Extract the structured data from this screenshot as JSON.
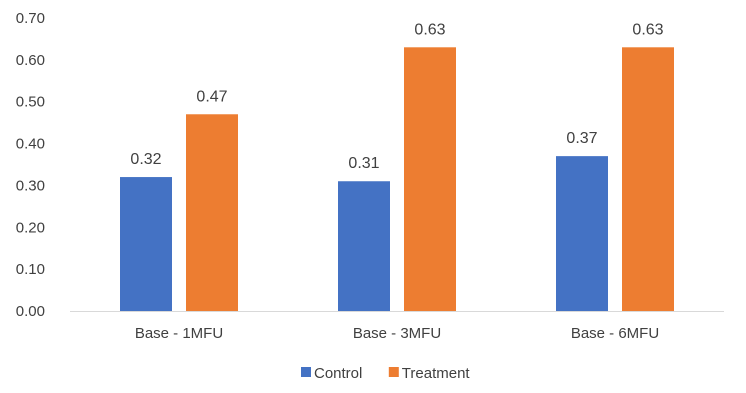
{
  "chart_data": {
    "type": "bar",
    "title": "",
    "xlabel": "",
    "ylabel": "",
    "categories": [
      "Base - 1MFU",
      "Base - 3MFU",
      "Base - 6MFU"
    ],
    "series": [
      {
        "name": "Control",
        "values": [
          0.32,
          0.31,
          0.37
        ],
        "color": "#4472C4",
        "labels": [
          "0.32",
          "0.31",
          "0.37"
        ]
      },
      {
        "name": "Treatment",
        "values": [
          0.47,
          0.63,
          0.63
        ],
        "color": "#ED7D31",
        "labels": [
          "0.47",
          "0.63",
          "0.63"
        ]
      }
    ],
    "ylim": [
      0,
      0.7
    ],
    "yticks": [
      0,
      0.1,
      0.2,
      0.3,
      0.4,
      0.5,
      0.6,
      0.7
    ],
    "ytick_labels": [
      "0.00",
      "0.10",
      "0.20",
      "0.30",
      "0.40",
      "0.50",
      "0.60",
      "0.70"
    ],
    "grid": false,
    "legend_position": "bottom-center",
    "axis_color": "#d9d9d9",
    "text_color": "#404040"
  }
}
